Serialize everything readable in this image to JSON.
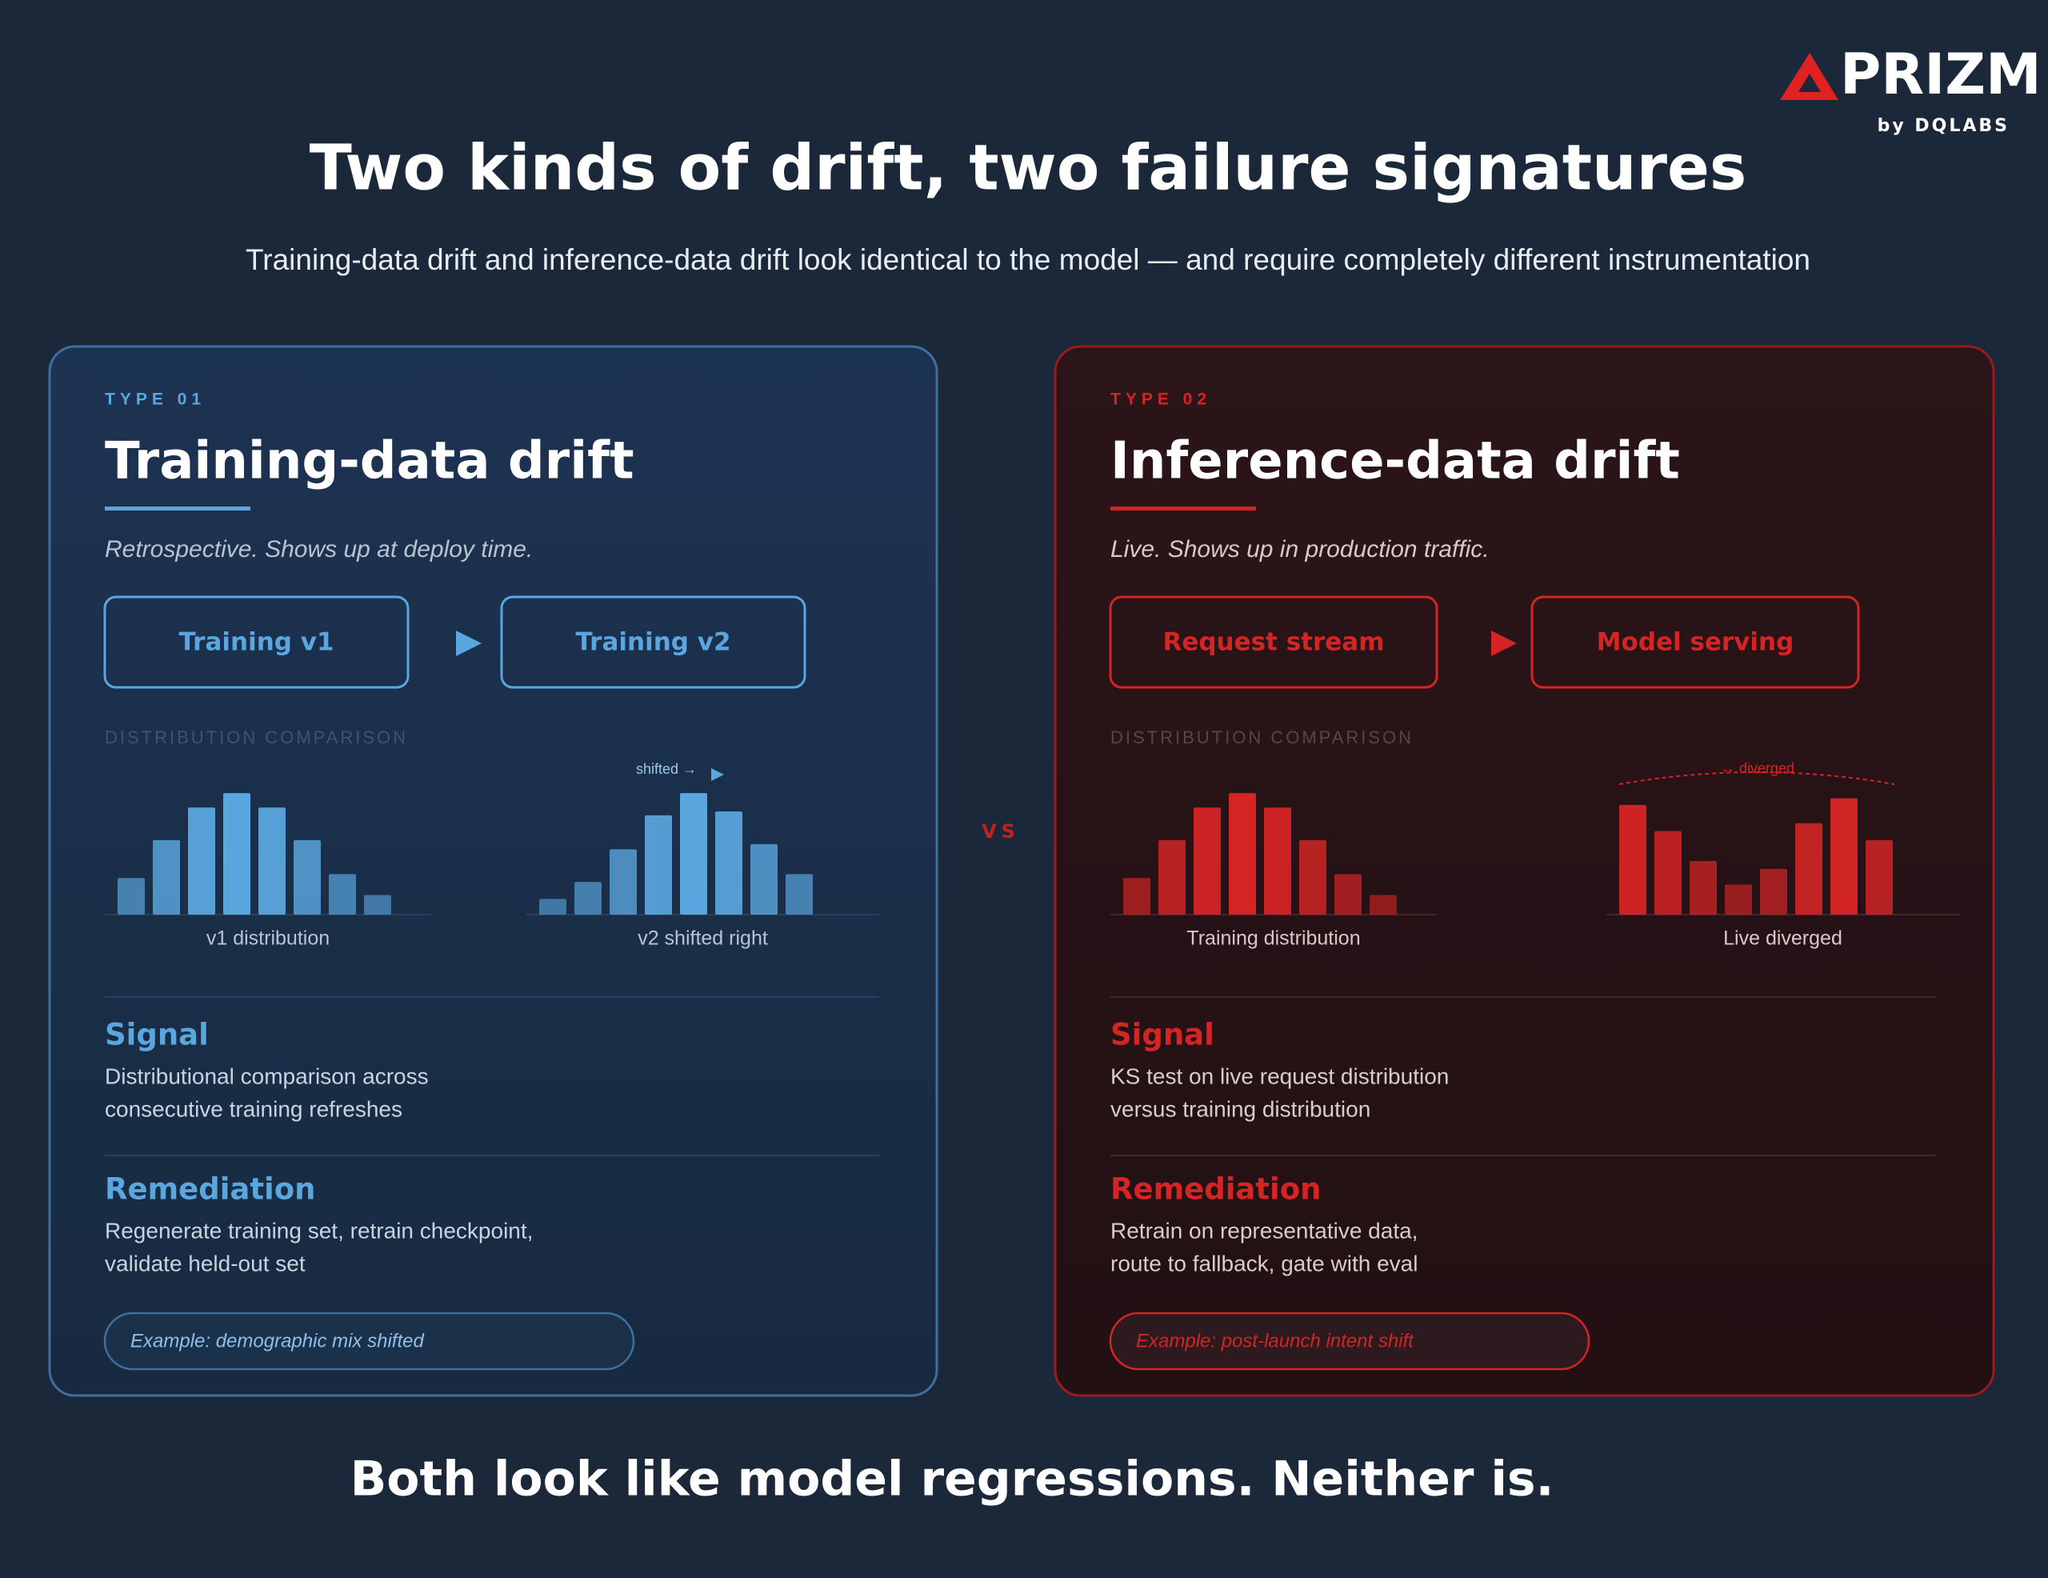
{
  "logo": {
    "name": "PRIZM",
    "byline": "by DQLABS"
  },
  "title": "Two kinds of drift, two failure signatures",
  "subtitle": "Training-data drift and inference-data drift look identical to the model — and require completely different instrumentation",
  "vs": "VS",
  "panels": [
    {
      "tag": "TYPE 01",
      "heading": "Training-data drift",
      "tagline": "Retrospective. Shows up at deploy time.",
      "flow": [
        "Training v1",
        "Training v2"
      ],
      "section_label": "DISTRIBUTION COMPARISON",
      "color": "#5aa6de",
      "charts": [
        {
          "label": "v1 distribution",
          "values": [
            28,
            57,
            82,
            93,
            82,
            57,
            31,
            15
          ]
        },
        {
          "label": "v2 shifted right",
          "annotation": "shifted →",
          "values": [
            12,
            25,
            50,
            76,
            93,
            79,
            54,
            31
          ]
        }
      ],
      "signal": {
        "title": "Signal",
        "lines": [
          "Distributional comparison across",
          "consecutive training refreshes"
        ]
      },
      "remediation": {
        "title": "Remediation",
        "lines": [
          "Regenerate training set, retrain checkpoint,",
          "validate held-out set"
        ]
      },
      "example": "Example: demographic mix shifted"
    },
    {
      "tag": "TYPE 02",
      "heading": "Inference-data drift",
      "tagline": "Live. Shows up in production traffic.",
      "flow": [
        "Request stream",
        "Model serving"
      ],
      "section_label": "DISTRIBUTION COMPARISON",
      "color": "#d42424",
      "charts": [
        {
          "label": "Training distribution",
          "values": [
            28,
            57,
            82,
            93,
            82,
            57,
            31,
            15
          ]
        },
        {
          "label": "Live diverged",
          "annotation": "↔ diverged",
          "values": [
            84,
            64,
            41,
            23,
            35,
            70,
            89,
            57
          ]
        }
      ],
      "signal": {
        "title": "Signal",
        "lines": [
          "KS test on live request distribution",
          "versus training distribution"
        ]
      },
      "remediation": {
        "title": "Remediation",
        "lines": [
          "Retrain on representative data,",
          "route to fallback, gate with eval"
        ]
      },
      "example": "Example: post-launch intent shift"
    }
  ],
  "footer": "Both look like model regressions. Neither is."
}
